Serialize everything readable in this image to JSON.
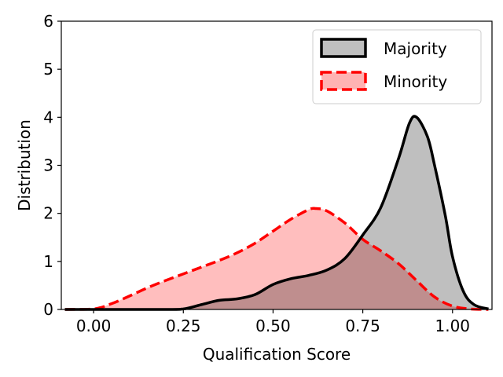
{
  "chart_data": {
    "type": "area",
    "title": "",
    "xlabel": "Qualification Score",
    "ylabel": "Distribution",
    "xlim": [
      -0.09,
      1.11
    ],
    "ylim": [
      0,
      6
    ],
    "x_ticks": [
      "0.00",
      "0.25",
      "0.50",
      "0.75",
      "1.00"
    ],
    "x_tick_values": [
      0.0,
      0.25,
      0.5,
      0.75,
      1.0
    ],
    "y_ticks": [
      "0",
      "1",
      "2",
      "3",
      "4",
      "5",
      "6"
    ],
    "y_tick_values": [
      0,
      1,
      2,
      3,
      4,
      5,
      6
    ],
    "grid": false,
    "legend_position": "top-right",
    "series": [
      {
        "name": "Majority",
        "line_color": "#000000",
        "fill_color": "#bfbfbf",
        "line_style": "solid",
        "x": [
          -0.08,
          0.2,
          0.25,
          0.3,
          0.35,
          0.4,
          0.45,
          0.5,
          0.55,
          0.6,
          0.65,
          0.7,
          0.75,
          0.8,
          0.85,
          0.88,
          0.9,
          0.93,
          0.95,
          0.98,
          1.0,
          1.03,
          1.06,
          1.1
        ],
        "values": [
          0,
          0,
          0.01,
          0.1,
          0.19,
          0.22,
          0.31,
          0.52,
          0.64,
          0.71,
          0.82,
          1.06,
          1.55,
          2.12,
          3.15,
          3.88,
          4.0,
          3.6,
          3.0,
          1.95,
          1.1,
          0.38,
          0.1,
          0.01
        ]
      },
      {
        "name": "Minority",
        "line_color": "#ff0000",
        "fill_color": "#ffb3b3",
        "line_style": "dashed",
        "x": [
          -0.08,
          0.0,
          0.05,
          0.1,
          0.15,
          0.2,
          0.25,
          0.3,
          0.35,
          0.4,
          0.45,
          0.5,
          0.55,
          0.6,
          0.62,
          0.65,
          0.7,
          0.75,
          0.8,
          0.85,
          0.9,
          0.95,
          1.0,
          1.05,
          1.1
        ],
        "values": [
          0,
          0.01,
          0.12,
          0.28,
          0.45,
          0.6,
          0.74,
          0.88,
          1.02,
          1.18,
          1.38,
          1.63,
          1.88,
          2.08,
          2.1,
          2.05,
          1.8,
          1.46,
          1.22,
          0.95,
          0.6,
          0.26,
          0.07,
          0.01,
          0.0
        ]
      }
    ]
  }
}
